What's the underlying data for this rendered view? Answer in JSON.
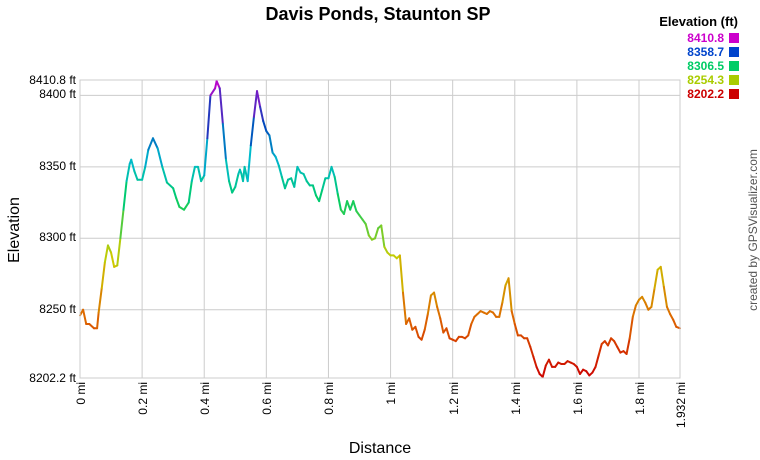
{
  "chart_data": {
    "type": "line",
    "title": "Davis Ponds, Staunton SP",
    "xlabel": "Distance",
    "ylabel": "Elevation",
    "credit": "created by GPSVisualizer.com",
    "x_unit": "mi",
    "y_unit": "ft",
    "xlim": [
      0,
      1.932
    ],
    "ylim": [
      8202.2,
      8410.8
    ],
    "x_ticks": [
      "0 mi",
      "0.2 mi",
      "0.4 mi",
      "0.6 mi",
      "0.8 mi",
      "1 mi",
      "1.2 mi",
      "1.4 mi",
      "1.6 mi",
      "1.8 mi",
      "1.932 mi"
    ],
    "y_ticks": [
      "8202.2 ft",
      "8250 ft",
      "8300 ft",
      "8350 ft",
      "8400 ft",
      "8410.8 ft"
    ],
    "grid": true,
    "legend": {
      "title": "Elevation (ft)",
      "position": "top-right",
      "items": [
        {
          "label": "8410.8",
          "color": "#cc00cc"
        },
        {
          "label": "8358.7",
          "color": "#0044cc"
        },
        {
          "label": "8306.5",
          "color": "#00cc66"
        },
        {
          "label": "8254.3",
          "color": "#aacc00"
        },
        {
          "label": "8202.2",
          "color": "#cc0000"
        }
      ]
    },
    "series": [
      {
        "x": [
          0.0,
          0.01,
          0.02,
          0.03,
          0.045,
          0.055,
          0.06,
          0.07,
          0.08,
          0.09,
          0.1,
          0.11,
          0.12,
          0.13,
          0.14,
          0.15,
          0.16,
          0.165,
          0.175,
          0.185,
          0.2,
          0.21,
          0.22,
          0.235,
          0.25,
          0.265,
          0.28,
          0.3,
          0.31,
          0.32,
          0.335,
          0.35,
          0.36,
          0.37,
          0.38,
          0.39,
          0.4,
          0.41,
          0.42,
          0.435,
          0.44,
          0.45,
          0.46,
          0.47,
          0.48,
          0.49,
          0.5,
          0.51,
          0.515,
          0.52,
          0.525,
          0.53,
          0.54,
          0.55,
          0.56,
          0.57,
          0.58,
          0.59,
          0.6,
          0.61,
          0.62,
          0.63,
          0.64,
          0.65,
          0.66,
          0.67,
          0.68,
          0.69,
          0.7,
          0.71,
          0.72,
          0.73,
          0.74,
          0.75,
          0.76,
          0.77,
          0.78,
          0.79,
          0.8,
          0.81,
          0.82,
          0.83,
          0.84,
          0.85,
          0.86,
          0.87,
          0.88,
          0.89,
          0.9,
          0.91,
          0.92,
          0.93,
          0.94,
          0.95,
          0.96,
          0.97,
          0.98,
          0.99,
          1.0,
          1.01,
          1.02,
          1.03,
          1.04,
          1.05,
          1.06,
          1.07,
          1.08,
          1.09,
          1.1,
          1.11,
          1.12,
          1.13,
          1.14,
          1.15,
          1.16,
          1.17,
          1.18,
          1.19,
          1.2,
          1.21,
          1.22,
          1.23,
          1.24,
          1.25,
          1.26,
          1.27,
          1.28,
          1.29,
          1.3,
          1.31,
          1.32,
          1.33,
          1.34,
          1.35,
          1.36,
          1.37,
          1.38,
          1.39,
          1.4,
          1.41,
          1.42,
          1.43,
          1.44,
          1.45,
          1.46,
          1.47,
          1.48,
          1.49,
          1.5,
          1.51,
          1.52,
          1.53,
          1.54,
          1.55,
          1.56,
          1.57,
          1.58,
          1.59,
          1.6,
          1.61,
          1.62,
          1.63,
          1.64,
          1.65,
          1.66,
          1.67,
          1.68,
          1.69,
          1.7,
          1.71,
          1.72,
          1.73,
          1.74,
          1.75,
          1.76,
          1.77,
          1.78,
          1.79,
          1.8,
          1.81,
          1.82,
          1.83,
          1.84,
          1.85,
          1.86,
          1.87,
          1.88,
          1.89,
          1.9,
          1.91,
          1.92,
          1.932
        ],
        "y": [
          8246,
          8250,
          8240,
          8240,
          8237,
          8237,
          8248,
          8265,
          8283,
          8295,
          8290,
          8280,
          8281,
          8300,
          8320,
          8340,
          8352,
          8355,
          8347,
          8341,
          8341,
          8350,
          8362,
          8370,
          8363,
          8350,
          8339,
          8335,
          8328,
          8322,
          8320,
          8325,
          8340,
          8350,
          8350,
          8340,
          8344,
          8370,
          8400,
          8405,
          8410,
          8405,
          8380,
          8355,
          8340,
          8332,
          8336,
          8345,
          8348,
          8345,
          8340,
          8350,
          8340,
          8365,
          8385,
          8403,
          8392,
          8382,
          8375,
          8372,
          8360,
          8357,
          8351,
          8343,
          8335,
          8341,
          8342,
          8336,
          8350,
          8346,
          8345,
          8340,
          8337,
          8337,
          8330,
          8326,
          8334,
          8342,
          8342,
          8350,
          8343,
          8331,
          8320,
          8317,
          8326,
          8320,
          8326,
          8319,
          8316,
          8313,
          8310,
          8302,
          8299,
          8300,
          8307,
          8309,
          8294,
          8290,
          8288,
          8288,
          8286,
          8288,
          8262,
          8240,
          8244,
          8236,
          8238,
          8231,
          8229,
          8236,
          8247,
          8260,
          8262,
          8252,
          8244,
          8234,
          8237,
          8230,
          8229,
          8228,
          8231,
          8231,
          8230,
          8232,
          8240,
          8245,
          8247,
          8249,
          8248,
          8247,
          8249,
          8248,
          8245,
          8245,
          8255,
          8267,
          8272,
          8249,
          8240,
          8232,
          8232,
          8230,
          8230,
          8224,
          8217,
          8210,
          8205,
          8203,
          8211,
          8215,
          8210,
          8210,
          8213,
          8212,
          8212,
          8214,
          8213,
          8212,
          8210,
          8205,
          8208,
          8207,
          8204,
          8206,
          8210,
          8218,
          8226,
          8228,
          8225,
          8230,
          8228,
          8224,
          8220,
          8221,
          8219,
          8230,
          8245,
          8253,
          8257,
          8259,
          8255,
          8250,
          8252,
          8265,
          8278,
          8280,
          8266,
          8252,
          8247,
          8243,
          8238,
          8237
        ]
      }
    ]
  }
}
